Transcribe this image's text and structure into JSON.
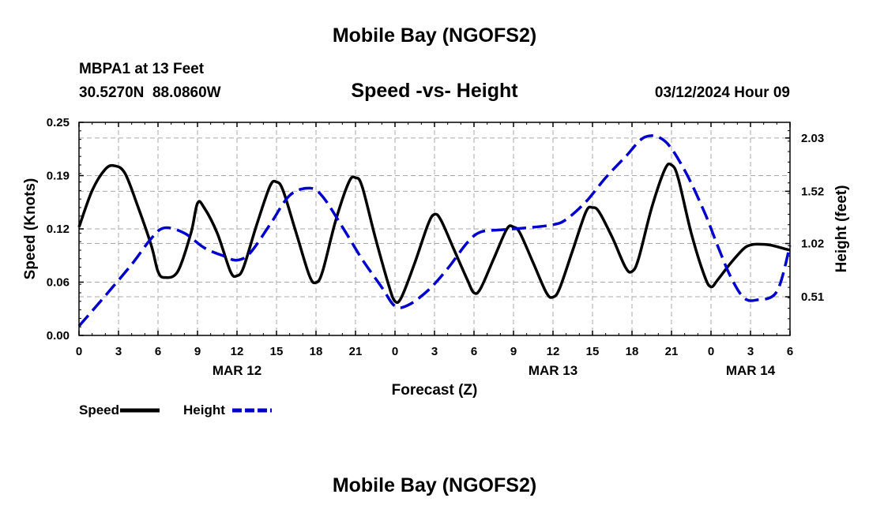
{
  "page_title": "Mobile Bay (NGOFS2)",
  "station": "MBPA1 at 13 Feet",
  "coordinates": "30.5270N  88.0860W",
  "date_time": "03/12/2024 Hour 09",
  "footer_title": "Mobile Bay (NGOFS2)",
  "chart_data": {
    "type": "line",
    "title": "Speed -vs- Height",
    "xlabel": "Forecast (Z)",
    "ylabel": "Speed (Knots)",
    "y2label": "Height (feet)",
    "xlim": [
      0,
      54
    ],
    "ylim": [
      0,
      0.25
    ],
    "y2lim": [
      0.14,
      2.18
    ],
    "x_ticks": [
      0,
      3,
      6,
      9,
      12,
      15,
      18,
      21,
      24,
      27,
      30,
      33,
      36,
      39,
      42,
      45,
      48,
      51,
      54
    ],
    "x_tick_labels": [
      "0",
      "3",
      "6",
      "9",
      "12",
      "15",
      "18",
      "21",
      "0",
      "3",
      "6",
      "9",
      "12",
      "15",
      "18",
      "21",
      "0",
      "3",
      "6"
    ],
    "y_ticks": [
      0,
      0.0625,
      0.125,
      0.1875,
      0.25
    ],
    "y_tick_labels": [
      "0.00",
      "0.06",
      "0.12",
      "0.19",
      "0.25"
    ],
    "y2_ticks": [
      0.51,
      1.02,
      1.52,
      2.03
    ],
    "y2_tick_labels": [
      "0.51",
      "1.02",
      "1.52",
      "2.03"
    ],
    "date_labels": [
      {
        "x": 12,
        "label": "MAR 12"
      },
      {
        "x": 36,
        "label": "MAR 13"
      },
      {
        "x": 51,
        "label": "MAR 14"
      }
    ],
    "grid": true,
    "legend_position": "bottom-left",
    "series": [
      {
        "name": "Speed",
        "axis": "left",
        "color": "#000000",
        "style": "solid",
        "x": [
          0,
          1,
          2,
          2.7,
          3.5,
          4.5,
          5.5,
          6,
          6.5,
          7.5,
          8.5,
          9,
          9.5,
          10.5,
          11.5,
          12,
          12.5,
          13.5,
          14.5,
          15,
          15.5,
          16.5,
          17.5,
          18,
          18.5,
          19.5,
          20.5,
          21,
          21.5,
          22.5,
          23.5,
          24,
          24.5,
          25.5,
          26.5,
          27,
          27.5,
          28.5,
          29.5,
          30,
          30.5,
          31.5,
          32.5,
          33,
          33.5,
          34.5,
          35.5,
          36,
          36.5,
          37.5,
          38.5,
          39,
          39.5,
          40.5,
          41.5,
          42,
          42.5,
          43.5,
          44.5,
          45,
          45.5,
          46.5,
          47.5,
          48,
          48.5,
          49.5,
          50.5,
          51,
          51.5,
          52.5,
          53.5,
          54
        ],
        "y": [
          0.127,
          0.17,
          0.195,
          0.199,
          0.19,
          0.15,
          0.105,
          0.075,
          0.068,
          0.075,
          0.12,
          0.155,
          0.15,
          0.12,
          0.075,
          0.07,
          0.08,
          0.13,
          0.175,
          0.18,
          0.17,
          0.12,
          0.07,
          0.062,
          0.075,
          0.135,
          0.18,
          0.185,
          0.175,
          0.115,
          0.06,
          0.04,
          0.045,
          0.085,
          0.13,
          0.142,
          0.135,
          0.1,
          0.065,
          0.05,
          0.055,
          0.09,
          0.125,
          0.127,
          0.12,
          0.085,
          0.05,
          0.045,
          0.055,
          0.1,
          0.145,
          0.15,
          0.145,
          0.115,
          0.08,
          0.075,
          0.09,
          0.15,
          0.195,
          0.2,
          0.185,
          0.12,
          0.07,
          0.057,
          0.065,
          0.085,
          0.102,
          0.106,
          0.107,
          0.106,
          0.102,
          0.1
        ]
      },
      {
        "name": "Height",
        "axis": "right",
        "color": "#0000cc",
        "style": "dashed",
        "x": [
          0,
          2,
          4,
          5.5,
          6.5,
          8,
          9.5,
          11,
          12,
          13,
          14.5,
          16,
          17.5,
          18.5,
          20,
          21.5,
          23,
          24,
          25,
          26.5,
          28,
          29.5,
          30.5,
          32,
          34,
          36,
          37,
          38.5,
          40,
          41.5,
          43,
          44.5,
          46,
          47.5,
          48.5,
          49.5,
          50.5,
          51.5,
          53,
          54
        ],
        "y": [
          0.23,
          0.52,
          0.82,
          1.07,
          1.17,
          1.12,
          0.98,
          0.9,
          0.86,
          0.93,
          1.2,
          1.48,
          1.55,
          1.47,
          1.18,
          0.87,
          0.6,
          0.42,
          0.43,
          0.57,
          0.78,
          1.03,
          1.13,
          1.15,
          1.17,
          1.2,
          1.25,
          1.42,
          1.65,
          1.85,
          2.04,
          2.0,
          1.72,
          1.32,
          1.0,
          0.7,
          0.5,
          0.48,
          0.56,
          1.0
        ]
      }
    ]
  }
}
